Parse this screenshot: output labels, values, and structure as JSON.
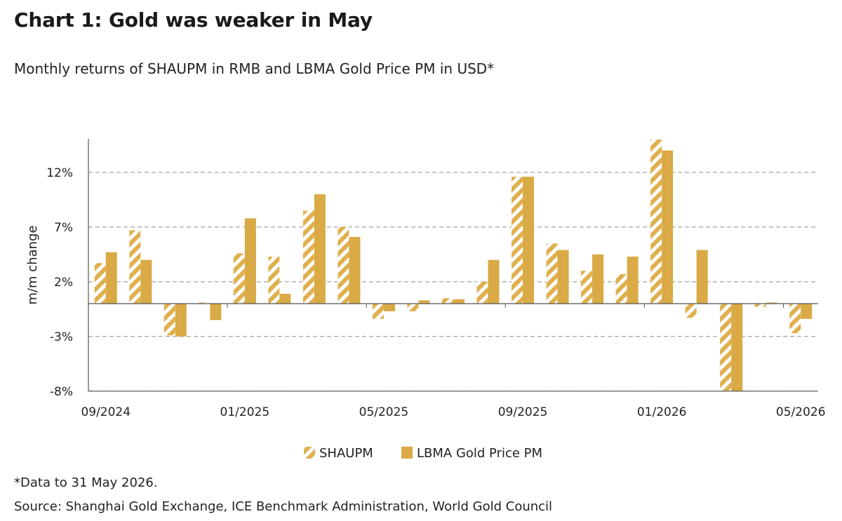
{
  "title": "Chart 1: Gold was weaker in May",
  "subtitle": "Monthly returns of SHAUPM in RMB and LBMA Gold Price PM in USD*",
  "footnote": "*Data to 31 May 2026.",
  "source": "Source: Shanghai Gold Exchange, ICE Benchmark Administration, World Gold Council",
  "chart_data": {
    "type": "bar",
    "ylabel": "m/m change",
    "ylim": [
      -8,
      15
    ],
    "yticks": [
      12,
      7,
      2,
      -3,
      -8
    ],
    "ytick_labels": [
      "12%",
      "7%",
      "2%",
      "-3%",
      "-8%"
    ],
    "grid": "horizontal-dashed",
    "legend_position": "bottom-center",
    "categories": [
      "09/2024",
      "10/2024",
      "11/2024",
      "12/2024",
      "01/2025",
      "02/2025",
      "03/2025",
      "04/2025",
      "05/2025",
      "06/2025",
      "07/2025",
      "08/2025",
      "09/2025",
      "10/2025",
      "11/2025",
      "12/2025",
      "01/2026",
      "02/2026",
      "03/2026",
      "04/2026",
      "05/2026"
    ],
    "xtick_labels": [
      "09/2024",
      "01/2025",
      "05/2025",
      "09/2025",
      "01/2026",
      "05/2026"
    ],
    "xtick_indices": [
      0,
      4,
      8,
      12,
      16,
      20
    ],
    "series": [
      {
        "name": "SHAUPM",
        "color": "#e0b04d",
        "pattern": "hatched",
        "values": [
          3.7,
          6.7,
          -2.9,
          0.1,
          4.6,
          4.3,
          8.5,
          7.0,
          -1.4,
          -0.7,
          0.5,
          2.0,
          11.6,
          5.5,
          3.0,
          2.7,
          15.0,
          -1.3,
          -8.0,
          -0.3,
          -2.7
        ]
      },
      {
        "name": "LBMA Gold Price PM",
        "color": "#d9aa45",
        "pattern": "solid",
        "values": [
          4.7,
          4.0,
          -3.0,
          -1.5,
          7.8,
          0.9,
          10.0,
          6.1,
          -0.7,
          0.3,
          0.4,
          4.0,
          11.6,
          4.9,
          4.5,
          4.3,
          14.0,
          4.9,
          -8.0,
          0.1,
          -1.4
        ]
      }
    ]
  }
}
